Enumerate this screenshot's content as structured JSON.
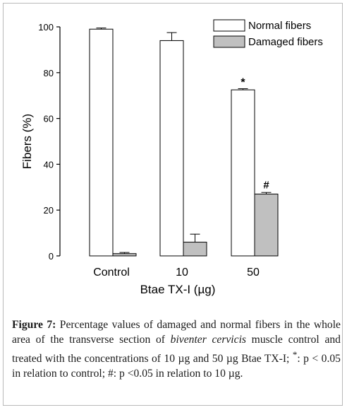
{
  "chart_data": {
    "type": "bar",
    "categories": [
      "Control",
      "10",
      "50"
    ],
    "series": [
      {
        "name": "Normal fibers",
        "values": [
          99.0,
          94.0,
          72.5
        ],
        "errors": [
          0.5,
          3.5,
          0.5
        ],
        "color": "#ffffff"
      },
      {
        "name": "Damaged fibers",
        "values": [
          1.0,
          6.0,
          27.0
        ],
        "errors": [
          0.5,
          3.5,
          0.7
        ],
        "color": "#c0c0c0"
      }
    ],
    "annotations": [
      {
        "category": "50",
        "series": "Normal fibers",
        "text": "*"
      },
      {
        "category": "50",
        "series": "Damaged fibers",
        "text": "#"
      }
    ],
    "xlabel": "Btae TX-I (µg)",
    "ylabel": "Fibers (%)",
    "ylim": [
      0,
      100
    ],
    "yticks": [
      0,
      20,
      40,
      60,
      80,
      100
    ],
    "grid": false,
    "legend_position": "top-right"
  },
  "caption": {
    "figure_label": "Figure 7:",
    "text_before_italic": " Percentage values of damaged and normal fibers in the whole area of the transverse section of ",
    "italic_text": "biventer cervicis",
    "text_after_italic": " muscle control and treated with the concentrations of 10 µg and 50 µg Btae TX-I; ",
    "superscript": "*",
    "text_end": ": p < 0.05 in relation to control; #: p <0.05 in relation to 10 µg."
  }
}
